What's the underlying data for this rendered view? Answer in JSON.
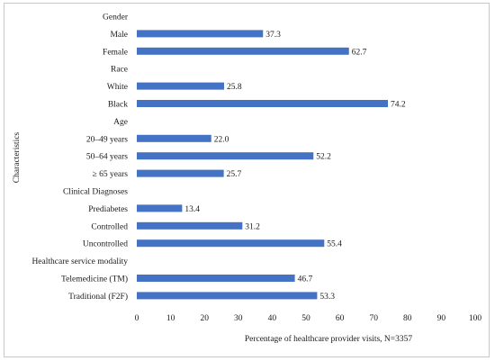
{
  "chart_data": {
    "type": "bar",
    "orientation": "horizontal",
    "xlabel": "Percentage of healthcare provider visits, N=3357",
    "ylabel": "Characteristics",
    "xlim": [
      0,
      100
    ],
    "xticks": [
      0,
      10,
      20,
      30,
      40,
      50,
      60,
      70,
      80,
      90,
      100
    ],
    "grid": false,
    "bar_color": "#4472c4",
    "categories": [
      "Gender",
      "Male",
      "Female",
      "Race",
      "White",
      "Black",
      "Age",
      "20–49 years",
      "50–64 years",
      "≥ 65 years",
      "Clinical Diagnoses",
      "Prediabetes",
      "Controlled",
      "Uncontrolled",
      "Healthcare service modality",
      "Telemedicine (TM)",
      "Traditional (F2F)"
    ],
    "values": [
      null,
      37.3,
      62.7,
      null,
      25.8,
      74.2,
      null,
      22.0,
      52.2,
      25.7,
      null,
      13.4,
      31.2,
      55.4,
      null,
      46.7,
      53.3
    ],
    "data_labels": [
      "",
      "37.3",
      "62.7",
      "",
      "25.8",
      "74.2",
      "",
      "22.0",
      "52.2",
      "25.7",
      "",
      "13.4",
      "31.2",
      "55.4",
      "",
      "46.7",
      "53.3"
    ]
  }
}
